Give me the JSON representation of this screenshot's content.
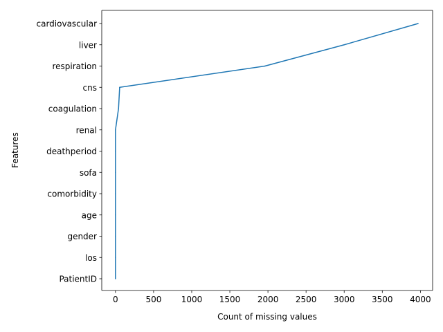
{
  "chart_data": {
    "type": "line",
    "title": "",
    "xlabel": "Count of missing values",
    "ylabel": "Features",
    "xlim": [
      -180,
      4160
    ],
    "xticks": [
      0,
      500,
      1000,
      1500,
      2000,
      2500,
      3000,
      3500,
      4000
    ],
    "xtick_labels": [
      "0",
      "500",
      "1000",
      "1500",
      "2000",
      "2500",
      "3000",
      "3500",
      "4000"
    ],
    "grid": false,
    "legend": "none",
    "line_color": "#1f77b4",
    "categories": [
      "PatientID",
      "los",
      "gender",
      "age",
      "comorbidity",
      "sofa",
      "deathperiod",
      "renal",
      "coagulation",
      "cns",
      "respiration",
      "liver",
      "cardiovascular"
    ],
    "values": [
      0,
      0,
      0,
      0,
      0,
      0,
      0,
      0,
      40,
      55,
      1960,
      3000,
      3970
    ]
  }
}
